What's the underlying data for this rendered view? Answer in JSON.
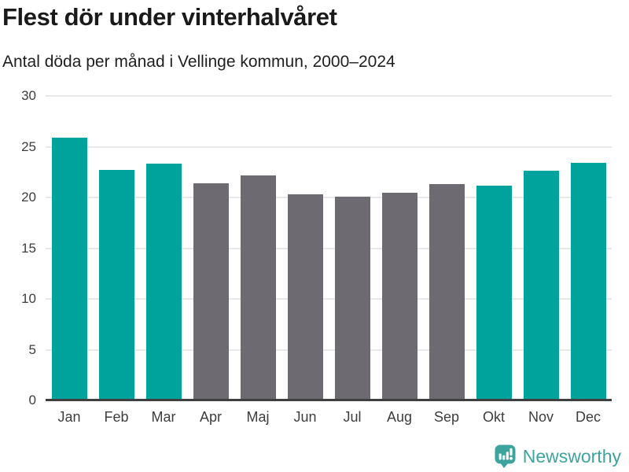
{
  "header": {
    "title": "Flest dör under vinterhalvåret",
    "subtitle": "Antal döda per månad i Vellinge kommun, 2000–2024"
  },
  "chart_data": {
    "type": "bar",
    "title": "Flest dör under vinterhalvåret",
    "subtitle": "Antal döda per månad i Vellinge kommun, 2000–2024",
    "categories": [
      "Jan",
      "Feb",
      "Mar",
      "Apr",
      "Maj",
      "Jun",
      "Jul",
      "Aug",
      "Sep",
      "Okt",
      "Nov",
      "Dec"
    ],
    "values": [
      25.9,
      22.7,
      23.3,
      21.4,
      22.2,
      20.3,
      20.1,
      20.5,
      21.3,
      21.2,
      22.6,
      23.4
    ],
    "highlighted": [
      true,
      true,
      true,
      false,
      false,
      false,
      false,
      false,
      false,
      true,
      true,
      true
    ],
    "xlabel": "",
    "ylabel": "",
    "ylim": [
      0,
      30
    ],
    "yticks": [
      0,
      5,
      10,
      15,
      20,
      25,
      30
    ],
    "grid": "horizontal",
    "legend": "none",
    "colors": {
      "highlight": "#00a39b",
      "base": "#6d6a71",
      "gridline": "#e8e8e8",
      "axis_line": "#3f3f3f",
      "tick_text": "#3d3d3d"
    }
  },
  "footer": {
    "brand": "Newsworthy",
    "logo_icon": "bar-chart-speech-bubble-icon",
    "brand_color": "#3da49d"
  }
}
